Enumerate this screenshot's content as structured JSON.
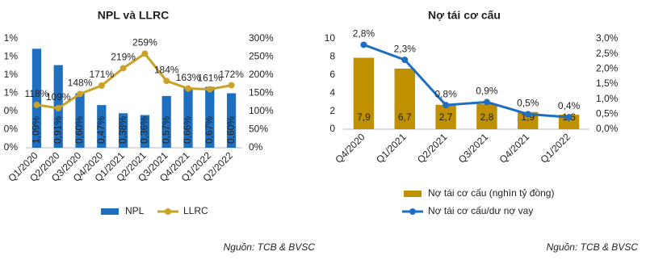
{
  "chart_data": [
    {
      "type": "combo",
      "title": "NPL và LLRC",
      "source": "Nguồn: TCB & BVSC",
      "categories": [
        "Q1/2020",
        "Q2/2020",
        "Q3/2020",
        "Q4/2020",
        "Q1/2021",
        "Q2/2021",
        "Q3/2021",
        "Q4/2021",
        "Q1/2022",
        "Q2/2022"
      ],
      "series": [
        {
          "name": "NPL",
          "type": "bar",
          "color": "#1f6fc0",
          "values": [
            1.09,
            0.91,
            0.6,
            0.47,
            0.38,
            0.36,
            0.57,
            0.66,
            0.67,
            0.6
          ],
          "value_labels": [
            "1,09%",
            "0,91%",
            "0,60%",
            "0,47%",
            "0,38%",
            "0,36%",
            "0,57%",
            "0,66%",
            "0,67%",
            "0,60%"
          ]
        },
        {
          "name": "LLRC",
          "type": "line",
          "axis": "y2",
          "color": "#c9a227",
          "values": [
            118,
            109,
            148,
            171,
            219,
            259,
            184,
            163,
            161,
            172
          ],
          "value_labels": [
            "118%",
            "109%",
            "148%",
            "171%",
            "219%",
            "259%",
            "184%",
            "163%",
            "161%",
            "172%"
          ]
        }
      ],
      "ylim": [
        0,
        1.2
      ],
      "yticks": [
        {
          "value": 0,
          "label": "0%"
        },
        {
          "value": 0.2,
          "label": "0%"
        },
        {
          "value": 0.4,
          "label": "0%"
        },
        {
          "value": 0.6,
          "label": "1%"
        },
        {
          "value": 0.8,
          "label": "1%"
        },
        {
          "value": 1.0,
          "label": "1%"
        },
        {
          "value": 1.2,
          "label": "1%"
        }
      ],
      "y2lim": [
        0,
        300
      ],
      "y2ticks": [
        {
          "value": 0,
          "label": "0%"
        },
        {
          "value": 50,
          "label": "50%"
        },
        {
          "value": 100,
          "label": "100%"
        },
        {
          "value": 150,
          "label": "150%"
        },
        {
          "value": 200,
          "label": "200%"
        },
        {
          "value": 250,
          "label": "250%"
        },
        {
          "value": 300,
          "label": "300%"
        }
      ],
      "legend": "bottom-horizontal"
    },
    {
      "type": "combo",
      "title": "Nợ tái cơ cấu",
      "source": "Nguồn: TCB & BVSC",
      "categories": [
        "Q4/2020",
        "Q1/2021",
        "Q2/2021",
        "Q3/2021",
        "Q4/2021",
        "Q1/2022"
      ],
      "series": [
        {
          "name": "Nợ tái cơ cấu (nghìn tỷ đồng)",
          "type": "bar",
          "color": "#bf9000",
          "values": [
            7.9,
            6.7,
            2.7,
            2.8,
            1.9,
            1.6
          ],
          "value_labels": [
            "7,9",
            "6,7",
            "2,7",
            "2,8",
            "1,9",
            "1,6"
          ]
        },
        {
          "name": "Nợ tái cơ cấu/dư nợ vay",
          "type": "line",
          "axis": "y2",
          "color": "#1f6fc0",
          "values": [
            2.8,
            2.3,
            0.8,
            0.9,
            0.5,
            0.4
          ],
          "value_labels": [
            "2,8%",
            "2,3%",
            "0,8%",
            "0,9%",
            "0,5%",
            "0,4%"
          ]
        }
      ],
      "ylim": [
        0,
        10
      ],
      "yticks": [
        0,
        2,
        4,
        6,
        8,
        10
      ],
      "y2lim": [
        0,
        3
      ],
      "y2ticks": [
        {
          "value": 0,
          "label": "0,0%"
        },
        {
          "value": 0.5,
          "label": "0,5%"
        },
        {
          "value": 1.0,
          "label": "1,0%"
        },
        {
          "value": 1.5,
          "label": "1,5%"
        },
        {
          "value": 2.0,
          "label": "2,0%"
        },
        {
          "value": 2.5,
          "label": "2,5%"
        },
        {
          "value": 3.0,
          "label": "3,0%"
        }
      ],
      "legend": "bottom-vertical"
    }
  ]
}
